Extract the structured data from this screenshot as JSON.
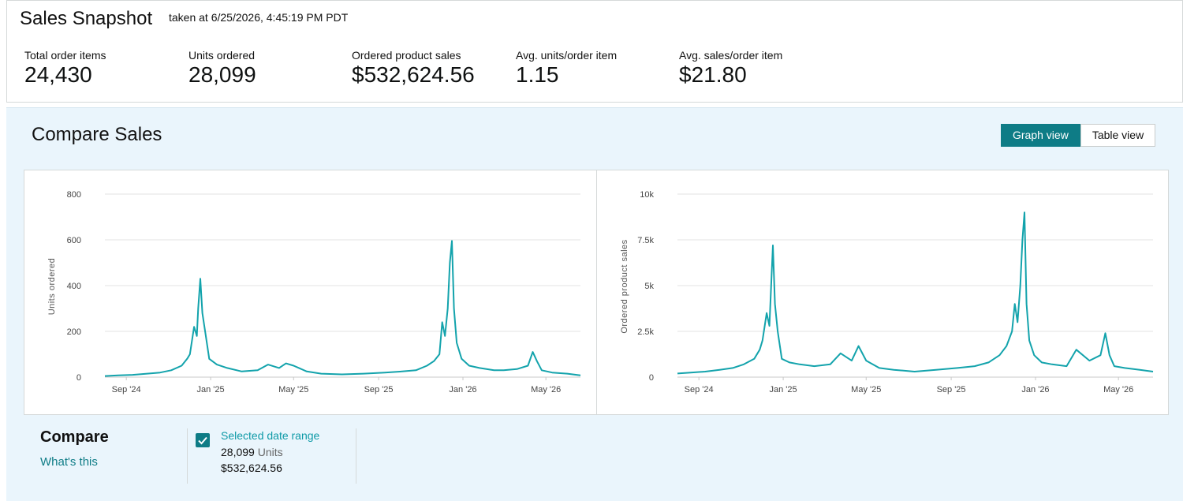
{
  "snapshot": {
    "title": "Sales Snapshot",
    "taken_at": "taken at 6/25/2026, 4:45:19 PM PDT"
  },
  "metrics": [
    {
      "label": "Total order items",
      "value": "24,430"
    },
    {
      "label": "Units ordered",
      "value": "28,099"
    },
    {
      "label": "Ordered product sales",
      "value": "$532,624.56"
    },
    {
      "label": "Avg. units/order item",
      "value": "1.15"
    },
    {
      "label": "Avg. sales/order item",
      "value": "$21.80"
    }
  ],
  "compare": {
    "title": "Compare Sales",
    "graph_view_label": "Graph view",
    "table_view_label": "Table view",
    "active_view": "graph",
    "legend": {
      "heading": "Compare",
      "whats_this": "What's this",
      "series_name": "Selected date range",
      "series_checked": true,
      "units_number": "28,099",
      "units_word": "Units",
      "sales": "$532,624.56"
    }
  },
  "colors": {
    "accent": "#0e7c86",
    "series_line": "#13a3ac",
    "panel_background": "#eaf5fc",
    "link": "#0e7c86"
  },
  "icons": {
    "checkbox": "check-icon"
  },
  "chart_data": [
    {
      "type": "line",
      "title": "",
      "xlabel": "",
      "ylabel": "Units ordered",
      "ylim": [
        0,
        800
      ],
      "yticks": [
        0,
        200,
        400,
        600,
        800
      ],
      "ytick_labels": [
        "0",
        "200",
        "400",
        "600",
        "800"
      ],
      "xlim": [
        "2024-08-01",
        "2026-06-20"
      ],
      "xticks": [
        "2024-09-01",
        "2025-01-01",
        "2025-05-01",
        "2025-09-01",
        "2026-01-01",
        "2026-05-01"
      ],
      "xtick_labels": [
        "Sep '24",
        "Jan '25",
        "May '25",
        "Sep '25",
        "Jan '26",
        "May '26"
      ],
      "grid": true,
      "series": [
        {
          "color": "#13a3ac",
          "x": [
            "2024-08-01",
            "2024-08-20",
            "2024-09-10",
            "2024-10-01",
            "2024-10-20",
            "2024-11-05",
            "2024-11-20",
            "2024-11-28",
            "2024-12-02",
            "2024-12-08",
            "2024-12-12",
            "2024-12-14",
            "2024-12-17",
            "2024-12-20",
            "2024-12-24",
            "2024-12-30",
            "2025-01-10",
            "2025-01-25",
            "2025-02-15",
            "2025-03-10",
            "2025-03-25",
            "2025-04-10",
            "2025-04-20",
            "2025-05-01",
            "2025-05-20",
            "2025-06-10",
            "2025-07-10",
            "2025-08-10",
            "2025-09-10",
            "2025-10-05",
            "2025-10-25",
            "2025-11-10",
            "2025-11-20",
            "2025-11-28",
            "2025-12-02",
            "2025-12-06",
            "2025-12-10",
            "2025-12-13",
            "2025-12-16",
            "2025-12-19",
            "2025-12-23",
            "2025-12-30",
            "2026-01-10",
            "2026-01-25",
            "2026-02-15",
            "2026-03-01",
            "2026-03-20",
            "2026-04-05",
            "2026-04-12",
            "2026-04-18",
            "2026-04-25",
            "2026-05-10",
            "2026-06-01",
            "2026-06-20"
          ],
          "y": [
            5,
            8,
            10,
            15,
            20,
            30,
            50,
            80,
            100,
            220,
            180,
            300,
            430,
            280,
            200,
            80,
            55,
            40,
            25,
            30,
            55,
            40,
            60,
            50,
            25,
            15,
            12,
            15,
            20,
            25,
            30,
            50,
            70,
            100,
            240,
            180,
            300,
            500,
            595,
            300,
            150,
            80,
            50,
            40,
            30,
            30,
            35,
            50,
            110,
            70,
            30,
            20,
            15,
            8
          ]
        }
      ]
    },
    {
      "type": "line",
      "title": "",
      "xlabel": "",
      "ylabel": "Ordered product sales",
      "ylim": [
        0,
        10000
      ],
      "yticks": [
        0,
        2500,
        5000,
        7500,
        10000
      ],
      "ytick_labels": [
        "0",
        "2.5k",
        "5k",
        "7.5k",
        "10k"
      ],
      "xlim": [
        "2024-08-01",
        "2026-06-20"
      ],
      "xticks": [
        "2024-09-01",
        "2025-01-01",
        "2025-05-01",
        "2025-09-01",
        "2026-01-01",
        "2026-05-01"
      ],
      "xtick_labels": [
        "Sep '24",
        "Jan '25",
        "May '25",
        "Sep '25",
        "Jan '26",
        "May '26"
      ],
      "grid": true,
      "series": [
        {
          "color": "#13a3ac",
          "x": [
            "2024-08-01",
            "2024-08-20",
            "2024-09-10",
            "2024-10-01",
            "2024-10-20",
            "2024-11-05",
            "2024-11-20",
            "2024-11-28",
            "2024-12-02",
            "2024-12-08",
            "2024-12-12",
            "2024-12-14",
            "2024-12-17",
            "2024-12-20",
            "2024-12-24",
            "2024-12-30",
            "2025-01-10",
            "2025-01-25",
            "2025-02-15",
            "2025-03-10",
            "2025-03-25",
            "2025-04-10",
            "2025-04-20",
            "2025-05-01",
            "2025-05-20",
            "2025-06-10",
            "2025-07-10",
            "2025-08-10",
            "2025-09-10",
            "2025-10-05",
            "2025-10-25",
            "2025-11-10",
            "2025-11-20",
            "2025-11-28",
            "2025-12-02",
            "2025-12-06",
            "2025-12-10",
            "2025-12-13",
            "2025-12-16",
            "2025-12-19",
            "2025-12-23",
            "2025-12-30",
            "2026-01-10",
            "2026-01-25",
            "2026-02-15",
            "2026-03-01",
            "2026-03-20",
            "2026-04-05",
            "2026-04-12",
            "2026-04-18",
            "2026-04-25",
            "2026-05-10",
            "2026-06-01",
            "2026-06-20"
          ],
          "y": [
            200,
            250,
            300,
            400,
            500,
            700,
            1000,
            1500,
            2000,
            3500,
            2800,
            4500,
            7200,
            4000,
            2500,
            1000,
            800,
            700,
            600,
            700,
            1300,
            900,
            1700,
            900,
            500,
            400,
            300,
            400,
            500,
            600,
            800,
            1200,
            1700,
            2500,
            4000,
            3000,
            5000,
            7500,
            9000,
            4000,
            2000,
            1200,
            800,
            700,
            600,
            1500,
            900,
            1200,
            2400,
            1200,
            600,
            500,
            400,
            300
          ]
        }
      ]
    }
  ]
}
